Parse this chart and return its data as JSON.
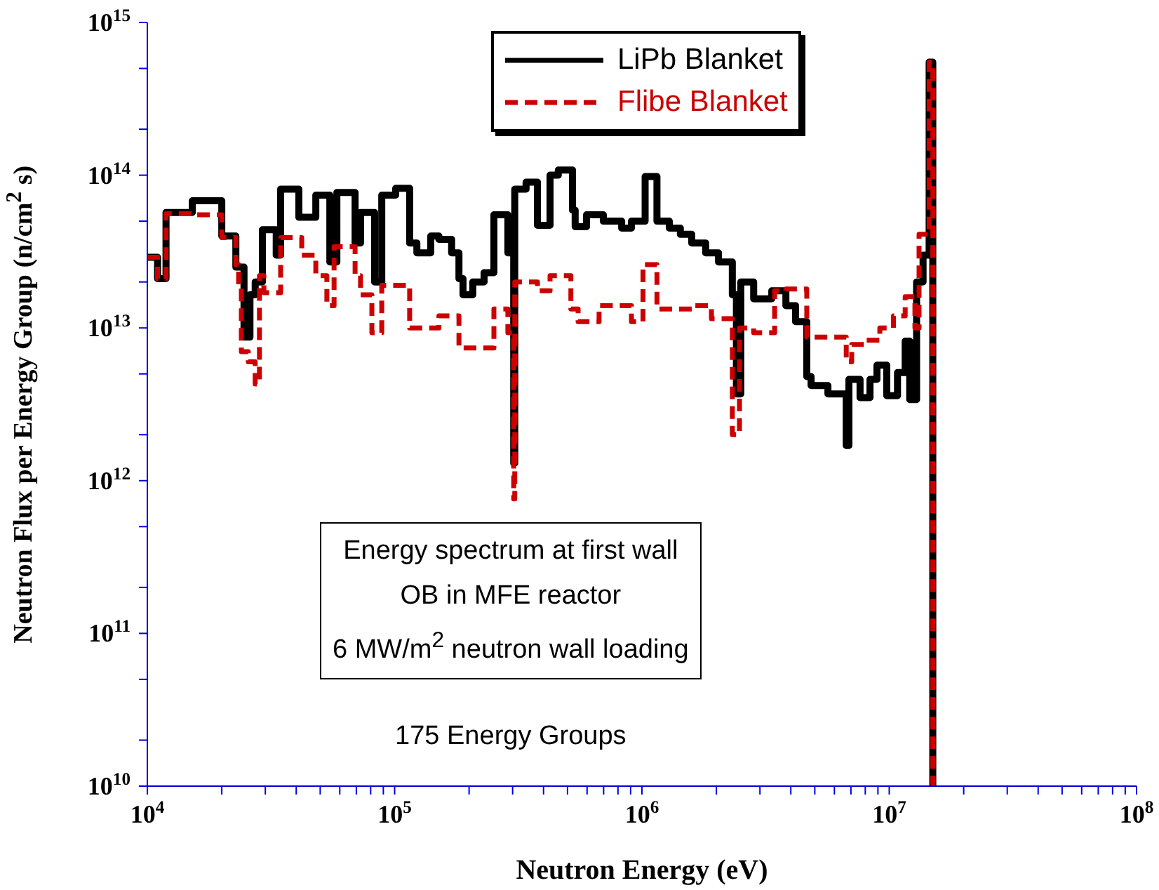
{
  "chart_data": {
    "type": "step",
    "xlabel": "Neutron Energy (eV)",
    "ylabel": "Neutron Flux per Energy Group (n/cm$^{2}$ s)",
    "log": "xy",
    "xlim": [
      10000,
      100000000
    ],
    "ylim": [
      10000000000,
      1000000000000000
    ],
    "xticks": [
      {
        "value": 10000,
        "label": "10$^{4}$"
      },
      {
        "value": 20000,
        "label": null
      },
      {
        "value": 30000,
        "label": null
      },
      {
        "value": 40000,
        "label": null
      },
      {
        "value": 50000,
        "label": null
      },
      {
        "value": 60000,
        "label": null
      },
      {
        "value": 70000,
        "label": null
      },
      {
        "value": 80000,
        "label": null
      },
      {
        "value": 90000,
        "label": null
      },
      {
        "value": 100000,
        "label": "10$^{5}$"
      },
      {
        "value": 200000,
        "label": null
      },
      {
        "value": 300000,
        "label": null
      },
      {
        "value": 400000,
        "label": null
      },
      {
        "value": 500000,
        "label": null
      },
      {
        "value": 600000,
        "label": null
      },
      {
        "value": 700000,
        "label": null
      },
      {
        "value": 800000,
        "label": null
      },
      {
        "value": 900000,
        "label": null
      },
      {
        "value": 1000000,
        "label": "10$^{6}$"
      },
      {
        "value": 2000000,
        "label": null
      },
      {
        "value": 3000000,
        "label": null
      },
      {
        "value": 4000000,
        "label": null
      },
      {
        "value": 5000000,
        "label": null
      },
      {
        "value": 6000000,
        "label": null
      },
      {
        "value": 7000000,
        "label": null
      },
      {
        "value": 8000000,
        "label": null
      },
      {
        "value": 9000000,
        "label": null
      },
      {
        "value": 10000000,
        "label": "10$^{7}$"
      },
      {
        "value": 20000000,
        "label": null
      },
      {
        "value": 30000000,
        "label": null
      },
      {
        "value": 40000000,
        "label": null
      },
      {
        "value": 50000000,
        "label": null
      },
      {
        "value": 60000000,
        "label": null
      },
      {
        "value": 70000000,
        "label": null
      },
      {
        "value": 80000000,
        "label": null
      },
      {
        "value": 90000000,
        "label": null
      },
      {
        "value": 100000000,
        "label": "10$^{8}$"
      }
    ],
    "yticks": [
      {
        "value": 10000000000,
        "label": "10$^{10}$"
      },
      {
        "value": 20000000000,
        "label": null
      },
      {
        "value": 50000000000,
        "label": null
      },
      {
        "value": 100000000000,
        "label": "10$^{11}$"
      },
      {
        "value": 200000000000,
        "label": null
      },
      {
        "value": 500000000000,
        "label": null
      },
      {
        "value": 1000000000000,
        "label": "10$^{12}$"
      },
      {
        "value": 2000000000000,
        "label": null
      },
      {
        "value": 5000000000000,
        "label": null
      },
      {
        "value": 10000000000000,
        "label": "10$^{13}$"
      },
      {
        "value": 20000000000000,
        "label": null
      },
      {
        "value": 50000000000000,
        "label": null
      },
      {
        "value": 100000000000000,
        "label": "10$^{14}$"
      },
      {
        "value": 200000000000000,
        "label": null
      },
      {
        "value": 500000000000000,
        "label": null
      },
      {
        "value": 1000000000000000,
        "label": "10$^{15}$"
      }
    ],
    "grid": false,
    "legend": "top",
    "marker": "none",
    "annotations": [
      "Energy spectrum at first wall",
      "OB in MFE reactor",
      "6 MW/m$^{2}$ neutron wall loading",
      "175 Energy Groups"
    ],
    "series": [
      {
        "name": "LiPb Blanket",
        "color": "#000000",
        "line_style": "solid",
        "x": [
          10000,
          11000,
          11900,
          15200,
          20000,
          22800,
          24600,
          26000,
          27300,
          29200,
          33200,
          34600,
          41000,
          48000,
          54700,
          58400,
          69200,
          72800,
          83000,
          88700,
          101000,
          115000,
          123000,
          140000,
          151000,
          170000,
          182000,
          189000,
          207000,
          230000,
          252000,
          287000,
          303000,
          306000,
          340000,
          378000,
          425000,
          459000,
          524000,
          537000,
          597000,
          698000,
          828000,
          907000,
          1030000,
          1150000,
          1290000,
          1430000,
          1590000,
          1810000,
          2040000,
          2320000,
          2410000,
          2510000,
          2830000,
          3350000,
          3820000,
          4180000,
          4640000,
          4830000,
          5650000,
          6700000,
          6870000,
          7620000,
          8360000,
          8920000,
          9770000,
          10800000,
          11600000,
          12100000,
          12900000,
          13700000,
          14500000,
          15000000
        ],
        "values": [
          29000000000000,
          21000000000000,
          57000000000000,
          68000000000000,
          40000000000000,
          25000000000000,
          8700000000000,
          16500000000000,
          20000000000000,
          44000000000000,
          30000000000000,
          81000000000000,
          53000000000000,
          74000000000000,
          27000000000000,
          77000000000000,
          36000000000000,
          57000000000000,
          20000000000000,
          74000000000000,
          82000000000000,
          36000000000000,
          31000000000000,
          40000000000000,
          38000000000000,
          31000000000000,
          21000000000000,
          16500000000000,
          20000000000000,
          23000000000000,
          55000000000000,
          31000000000000,
          1300000000000,
          81000000000000,
          90000000000000,
          47000000000000,
          100000000000000,
          108000000000000,
          59000000000000,
          46000000000000,
          55000000000000,
          50000000000000,
          45000000000000,
          50000000000000,
          98000000000000,
          50000000000000,
          45000000000000,
          41000000000000,
          36000000000000,
          31000000000000,
          27000000000000,
          16500000000000,
          3700000000000,
          20000000000000,
          15500000000000,
          17500000000000,
          14000000000000,
          11000000000000,
          4800000000000,
          4200000000000,
          3700000000000,
          1700000000000,
          4600000000000,
          3500000000000,
          4600000000000,
          5700000000000,
          3600000000000,
          5100000000000,
          8200000000000,
          3400000000000,
          20000000000000,
          30000000000000,
          550000000000000,
          10000000000
        ]
      },
      {
        "name": "Flibe Blanket",
        "color": "#cc0000",
        "line_style": "dashed",
        "x": [
          10000,
          11000,
          11900,
          15200,
          20000,
          22800,
          23400,
          24000,
          25600,
          27300,
          28400,
          29600,
          34600,
          42100,
          48000,
          53200,
          56900,
          69200,
          72800,
          80900,
          88700,
          115000,
          151000,
          182000,
          252000,
          287000,
          303000,
          306000,
          378000,
          425000,
          516000,
          552000,
          671000,
          907000,
          1010000,
          1150000,
          1590000,
          1910000,
          2320000,
          2480000,
          2830000,
          3440000,
          3820000,
          4640000,
          6700000,
          7050000,
          8030000,
          9160000,
          10400000,
          11600000,
          12700000,
          13200000,
          14500000,
          15000000
        ],
        "values": [
          29000000000000,
          21000000000000,
          56000000000000,
          55000000000000,
          39000000000000,
          26000000000000,
          19000000000000,
          7000000000000,
          6000000000000,
          4300000000000,
          22000000000000,
          17000000000000,
          39000000000000,
          30000000000000,
          22000000000000,
          14000000000000,
          34000000000000,
          22000000000000,
          16500000000000,
          9300000000000,
          19000000000000,
          10000000000000,
          12000000000000,
          7400000000000,
          13300000000000,
          9300000000000,
          760000000000,
          20000000000000,
          17500000000000,
          22000000000000,
          13300000000000,
          11000000000000,
          14000000000000,
          11000000000000,
          26000000000000,
          13300000000000,
          14000000000000,
          11500000000000,
          2000000000000,
          10000000000000,
          9300000000000,
          17500000000000,
          18000000000000,
          8700000000000,
          6000000000000,
          7800000000000,
          8300000000000,
          10000000000000,
          12000000000000,
          16000000000000,
          10000000000000,
          41000000000000,
          550000000000000,
          10000000000
        ]
      }
    ]
  }
}
